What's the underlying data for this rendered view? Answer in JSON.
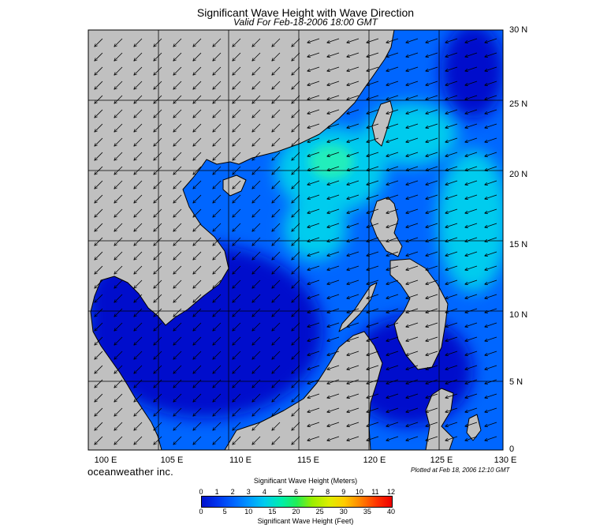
{
  "header": {
    "title": "Significant Wave Height with Wave Direction",
    "subtitle": "Valid For Feb-18-2006 18:00 GMT"
  },
  "map": {
    "lon_range": [
      100,
      130
    ],
    "lat_range": [
      0,
      30
    ],
    "lon_labels": [
      "100 E",
      "105 E",
      "110 E",
      "115 E",
      "120 E",
      "125 E",
      "130 E"
    ],
    "lat_labels": [
      "30 N",
      "25 N",
      "20 N",
      "15 N",
      "10 N",
      "5 N",
      "0"
    ],
    "wave_direction": "from northeast",
    "colors": {
      "land": "#c0c0c0",
      "land_border": "#000000",
      "water_low": "#0011cc",
      "water_mid": "#0066ff",
      "water_high": "#00ccee",
      "water_peak": "#22eebb",
      "grid": "#000000",
      "arrow": "#000000"
    }
  },
  "footer": {
    "brand": "oceanweather inc.",
    "plotted": "Plotted at Feb 18, 2006 12:10 GMT"
  },
  "colorbar": {
    "title_top": "Significant Wave Height (Meters)",
    "title_bottom": "Significant Wave Height (Feet)",
    "meters_ticks": [
      "0",
      "1",
      "2",
      "3",
      "4",
      "5",
      "6",
      "7",
      "8",
      "9",
      "10",
      "11",
      "12"
    ],
    "feet_ticks": [
      "0",
      "5",
      "10",
      "15",
      "20",
      "25",
      "30",
      "35",
      "40"
    ]
  }
}
